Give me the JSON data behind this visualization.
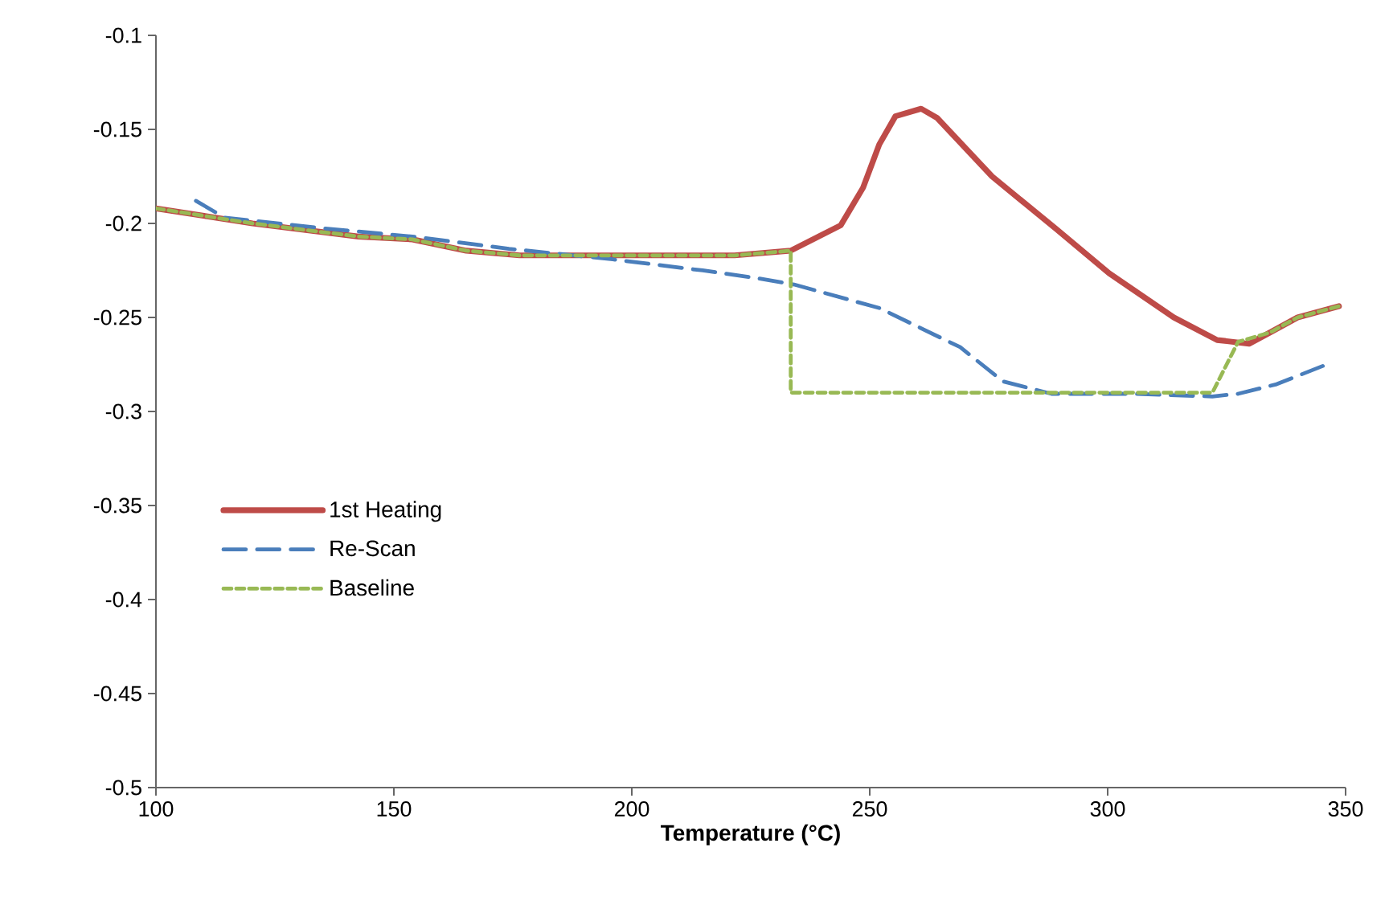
{
  "chart_data": {
    "type": "line",
    "xlabel": "Temperature (°C)",
    "xlim": [
      100,
      350
    ],
    "xticks": [
      100,
      150,
      200,
      250,
      300,
      350
    ],
    "ylim": [
      -0.5,
      -0.1
    ],
    "yticks": [
      -0.5,
      -0.45,
      -0.4,
      -0.35,
      -0.3,
      -0.25,
      -0.2,
      -0.15,
      -0.1
    ],
    "grid": false,
    "legend": "left",
    "marker": "none",
    "series": [
      {
        "name": "1st Heating",
        "color": "#be4b48",
        "line_style": "solid",
        "x": [
          100,
          120.3,
          142.6,
          153.9,
          165.2,
          176.4,
          199,
          221.6,
          233.4,
          243.9,
          248.6,
          252,
          255.4,
          260.8,
          264.2,
          275.7,
          289.2,
          300.3,
          313.9,
          323,
          329.7,
          334.1,
          339.9,
          348.6
        ],
        "values": [
          -0.192,
          -0.2,
          -0.207,
          -0.2085,
          -0.2145,
          -0.217,
          -0.217,
          -0.217,
          -0.2145,
          -0.201,
          -0.181,
          -0.158,
          -0.143,
          -0.139,
          -0.144,
          -0.175,
          -0.203,
          -0.2265,
          -0.25,
          -0.262,
          -0.264,
          -0.258,
          -0.25,
          -0.244
        ]
      },
      {
        "name": "Re-Scan",
        "color": "#4a7ebb",
        "line_style": "dashed",
        "x": [
          108.4,
          114.5,
          134.8,
          153.9,
          174.2,
          195.6,
          214.9,
          226,
          234.1,
          252,
          269,
          278,
          288.2,
          305,
          322,
          327.4,
          335.5,
          346
        ],
        "values": [
          -0.188,
          -0.197,
          -0.2025,
          -0.207,
          -0.2135,
          -0.219,
          -0.225,
          -0.229,
          -0.2325,
          -0.245,
          -0.2658,
          -0.284,
          -0.2906,
          -0.2906,
          -0.292,
          -0.2906,
          -0.2855,
          -0.275
        ]
      },
      {
        "name": "Baseline",
        "color": "#98b954",
        "line_style": "dotted",
        "x": [
          100,
          120.3,
          142.6,
          153.9,
          165.2,
          176.4,
          199,
          221.6,
          233.4,
          233.4,
          322,
          327.4,
          334.1,
          339.9,
          348.6
        ],
        "values": [
          -0.192,
          -0.2,
          -0.207,
          -0.2085,
          -0.2145,
          -0.217,
          -0.217,
          -0.217,
          -0.2145,
          -0.29,
          -0.29,
          -0.263,
          -0.258,
          -0.25,
          -0.244
        ]
      }
    ]
  }
}
